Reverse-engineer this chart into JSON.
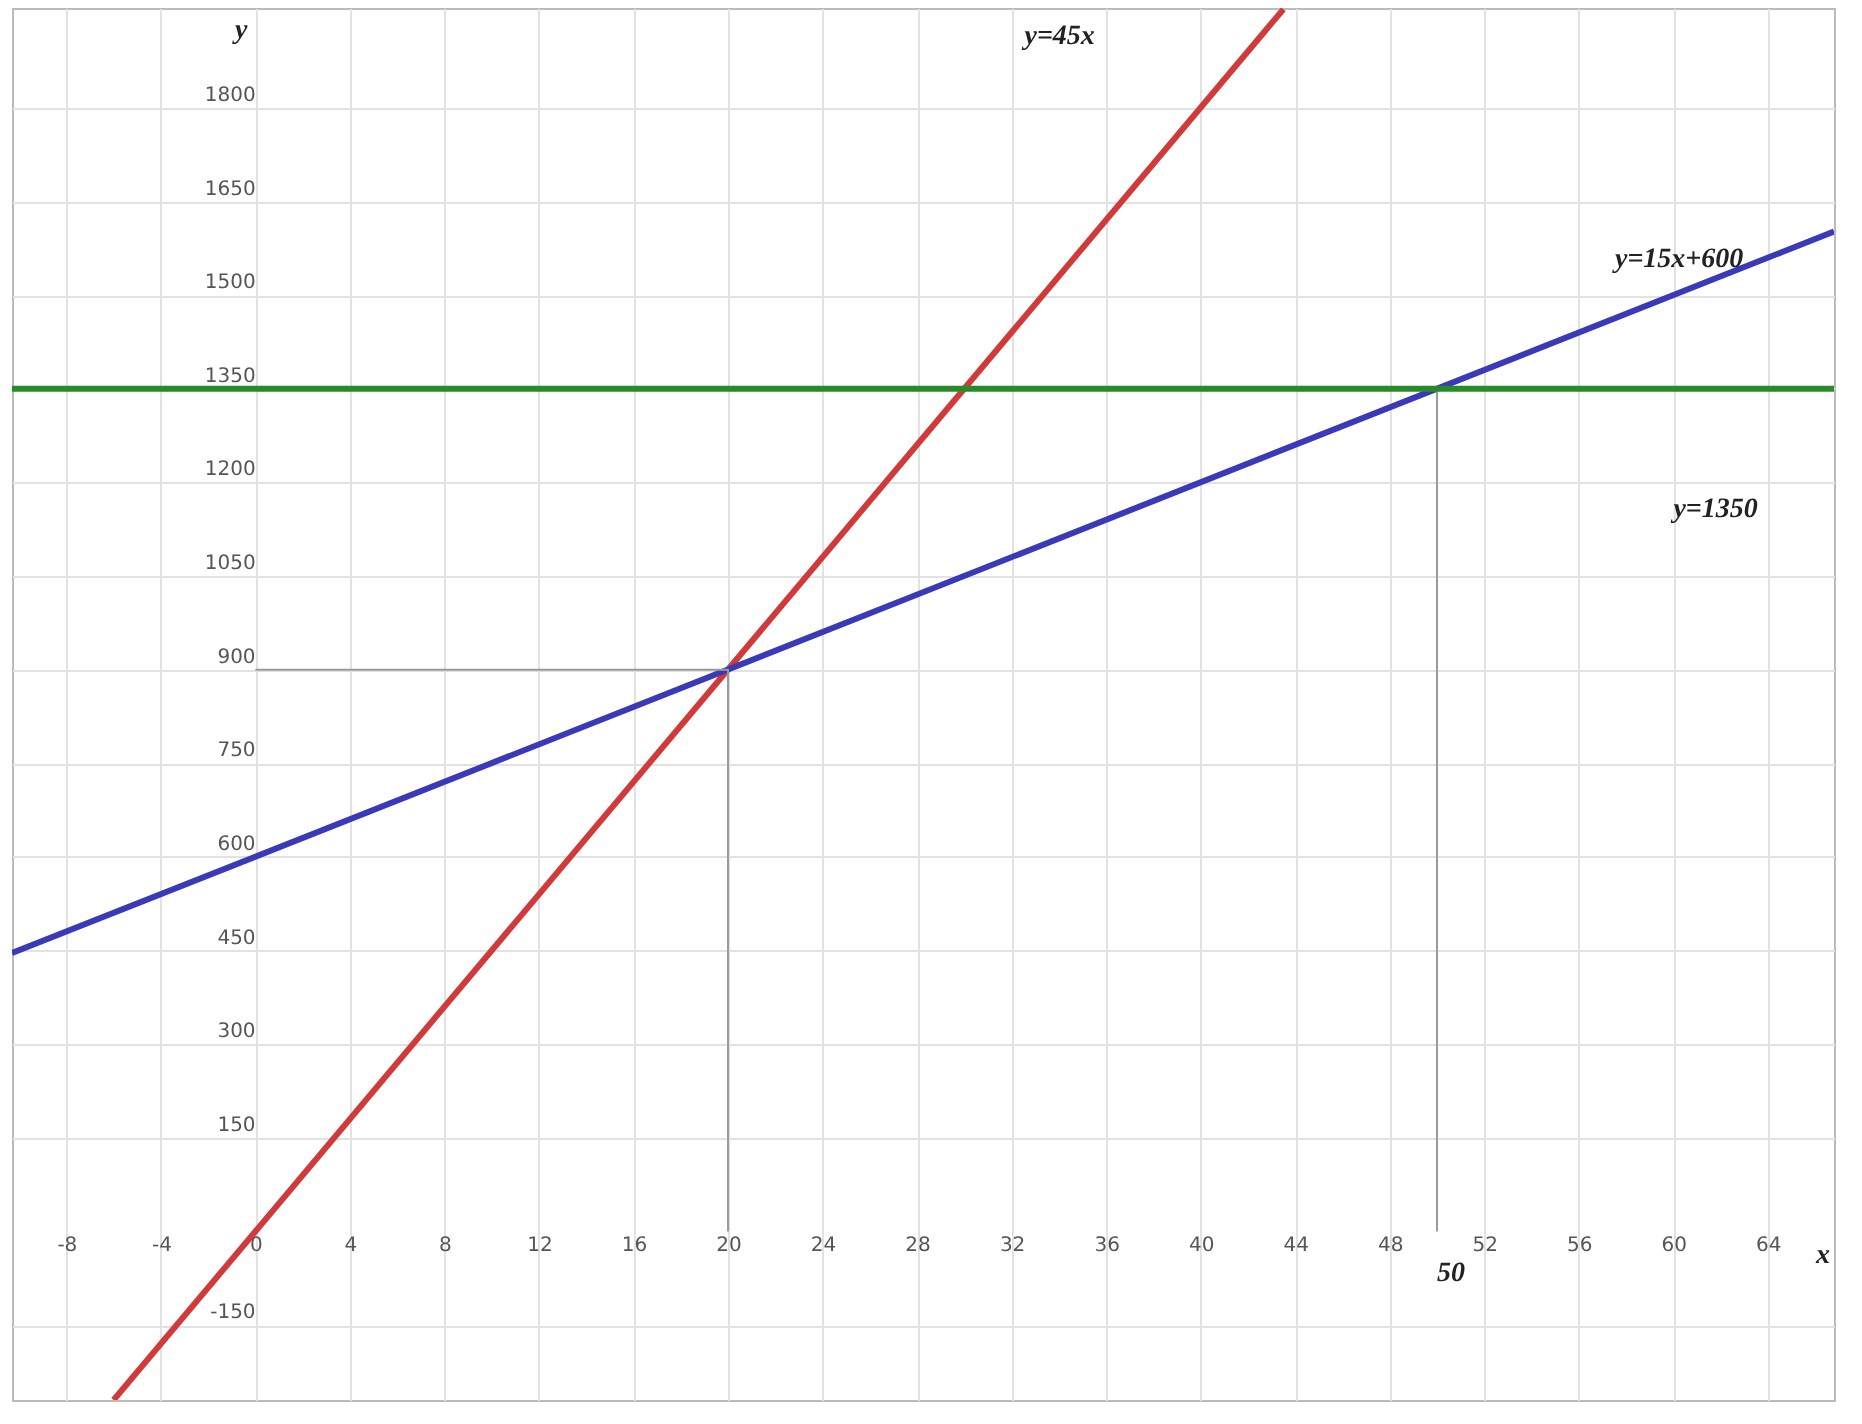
{
  "chart_data": {
    "type": "line",
    "xlabel": "x",
    "ylabel": "y",
    "xlim": [
      -10.3,
      66.8
    ],
    "ylim": [
      -270,
      1960
    ],
    "xticks": [
      -8,
      -4,
      0,
      4,
      8,
      12,
      16,
      20,
      24,
      28,
      32,
      36,
      40,
      44,
      48,
      52,
      56,
      60,
      64
    ],
    "yticks": [
      -150,
      150,
      300,
      450,
      600,
      750,
      900,
      1050,
      1200,
      1350,
      1500,
      1650,
      1800
    ],
    "grid": true,
    "legend": false,
    "marker": "none",
    "line_style": "solid",
    "series": [
      {
        "color": "#d03a3a",
        "x": [
          -6,
          43.5
        ],
        "values": [
          -270,
          1958
        ]
      },
      {
        "color": "#3a3ab8",
        "x": [
          -10.3,
          66.8
        ],
        "values": [
          446,
          1602
        ]
      },
      {
        "color": "#9a9a9a",
        "x": [
          0,
          20,
          20
        ],
        "values": [
          900,
          900,
          0
        ]
      },
      {
        "color": "#9a9a9a",
        "x": [
          50,
          50
        ],
        "values": [
          1350,
          0
        ]
      }
    ],
    "ref_lines": [
      {
        "axis": "y",
        "value": 1350,
        "color": "#2a8a2a"
      }
    ],
    "annotations": [
      "y=45x",
      "y=15x+600",
      "y=1350",
      {
        "text": "50",
        "x": 50,
        "y": 0
      }
    ]
  }
}
